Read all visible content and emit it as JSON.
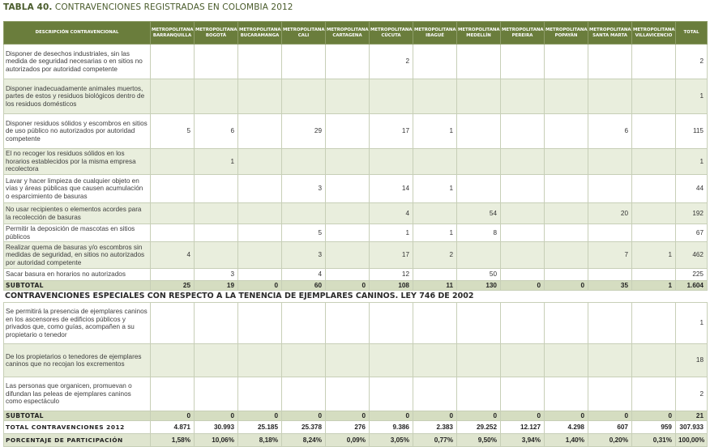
{
  "table": {
    "title_prefix": "TABLA 40.",
    "title_text": " CONTRAVENCIONES REGISTRADAS EN COLOMBIA 2012",
    "headers": [
      "DESCRIPCIÓN CONTRAVENCIONAL",
      "METROPOLITANA BARRANQUILLA",
      "METROPOLITANA BOGOTÁ",
      "METROPOLITANA BUCARAMANGA",
      "METROPOLITANA CALI",
      "METROPOLITANA CARTAGENA",
      "METROPOLITANA CÚCUTA",
      "METROPOLITANA IBAGUÉ",
      "METROPOLITANA MEDELLÍN",
      "METROPOLITANA PEREIRA",
      "METROPOLITANA POPAYÁN",
      "METROPOLITANA SANTA MARTA",
      "METROPOLITANA VILLAVICENCIO",
      "TOTAL"
    ],
    "rows": [
      {
        "desc": "Disponer de desechos industriales, sin las medida de seguridad necesarias o en sitios no autorizados por autoridad competente",
        "values": [
          "",
          "",
          "",
          "",
          "",
          "2",
          "",
          "",
          "",
          "",
          "",
          "",
          "2"
        ]
      },
      {
        "desc": "Disponer inadecuadamente animales muertos, partes de estos y residuos biológicos dentro de los residuos domésticos",
        "values": [
          "",
          "",
          "",
          "",
          "",
          "",
          "",
          "",
          "",
          "",
          "",
          "",
          "1"
        ]
      },
      {
        "desc": "Disponer residuos sólidos y escombros en sitios de uso público no autorizados por autoridad competente",
        "values": [
          "5",
          "6",
          "",
          "29",
          "",
          "17",
          "1",
          "",
          "",
          "",
          "6",
          "",
          "115"
        ]
      },
      {
        "desc": "El no recoger los residuos sólidos en los horarios establecidos por la misma empresa recolectora",
        "values": [
          "",
          "1",
          "",
          "",
          "",
          "",
          "",
          "",
          "",
          "",
          "",
          "",
          "1"
        ]
      },
      {
        "desc": "Lavar y hacer limpieza de cualquier objeto en vías y áreas públicas que causen acumulación o esparcimiento de basuras",
        "values": [
          "",
          "",
          "",
          "3",
          "",
          "14",
          "1",
          "",
          "",
          "",
          "",
          "",
          "44"
        ]
      },
      {
        "desc": "No usar recipientes o elementos acordes para la recolección de basuras",
        "values": [
          "",
          "",
          "",
          "",
          "",
          "4",
          "",
          "54",
          "",
          "",
          "20",
          "",
          "192"
        ]
      },
      {
        "desc": "Permitir la deposición de mascotas en sitios públicos",
        "values": [
          "",
          "",
          "",
          "5",
          "",
          "1",
          "1",
          "8",
          "",
          "",
          "",
          "",
          "67"
        ]
      },
      {
        "desc": "Realizar quema de basuras y/o escombros sin medidas de seguridad, en sitios no autorizados por autoridad competente",
        "values": [
          "4",
          "",
          "",
          "3",
          "",
          "17",
          "2",
          "",
          "",
          "",
          "7",
          "1",
          "462"
        ]
      },
      {
        "desc": "Sacar basura en horarios no autorizados",
        "values": [
          "",
          "3",
          "",
          "4",
          "",
          "12",
          "",
          "50",
          "",
          "",
          "",
          "",
          "225"
        ]
      }
    ],
    "subtotal1": {
      "label": "SUBTOTAL",
      "values": [
        "25",
        "19",
        "0",
        "60",
        "0",
        "108",
        "11",
        "130",
        "0",
        "0",
        "35",
        "1",
        "1.604"
      ]
    },
    "section2_title": "CONTRAVENCIONES ESPECIALES CON RESPECTO A LA TENENCIA DE EJEMPLARES CANINOS. LEY 746 DE 2002",
    "rows2": [
      {
        "desc": "Se permitirá la presencia de ejemplares caninos en los ascensores de edificios públicos y privados que, como guías, acompañen a su propietario o tenedor",
        "values": [
          "",
          "",
          "",
          "",
          "",
          "",
          "",
          "",
          "",
          "",
          "",
          "",
          "1"
        ]
      },
      {
        "desc": "De los propietarios o tenedores de ejemplares caninos que no recojan los excrementos",
        "values": [
          "",
          "",
          "",
          "",
          "",
          "",
          "",
          "",
          "",
          "",
          "",
          "",
          "18"
        ]
      },
      {
        "desc": "Las personas que organicen, promuevan o difundan las peleas de ejemplares caninos como espectáculo",
        "values": [
          "",
          "",
          "",
          "",
          "",
          "",
          "",
          "",
          "",
          "",
          "",
          "",
          "2"
        ]
      }
    ],
    "subtotal2": {
      "label": "SUBTOTAL",
      "values": [
        "0",
        "0",
        "0",
        "0",
        "0",
        "0",
        "0",
        "0",
        "0",
        "0",
        "0",
        "0",
        "21"
      ]
    },
    "total": {
      "label": "TOTAL CONTRAVENCIONES 2012",
      "values": [
        "4.871",
        "30.993",
        "25.185",
        "25.378",
        "276",
        "9.386",
        "2.383",
        "29.252",
        "12.127",
        "4.298",
        "607",
        "959",
        "307.933"
      ]
    },
    "percent": {
      "label": "PORCENTAJE DE PARTICIPACIÓN",
      "values": [
        "1,58%",
        "10,06%",
        "8,18%",
        "8,24%",
        "0,09%",
        "3,05%",
        "0,77%",
        "9,50%",
        "3,94%",
        "1,40%",
        "0,20%",
        "0,31%",
        "100,00%"
      ]
    }
  }
}
